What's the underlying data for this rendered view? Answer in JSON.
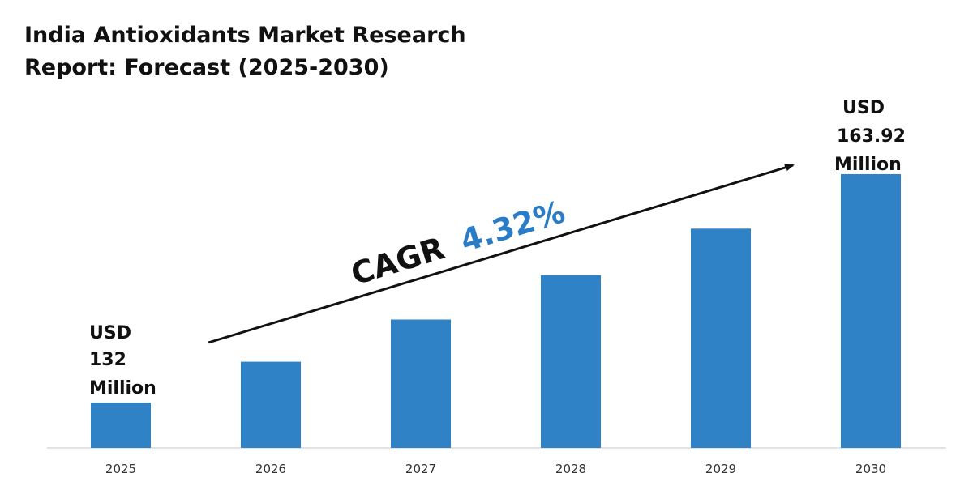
{
  "title": {
    "line1": "India Antioxidants Market Research",
    "line2": "Report: Forecast (2025-2030)"
  },
  "colors": {
    "bar": "#2f82c6",
    "cagr_value": "#2a7cc7",
    "text": "#111111",
    "baseline": "#d9d9d9"
  },
  "cagr": {
    "label": "CAGR",
    "value": "4.32%"
  },
  "start_label": [
    "USD",
    "132",
    "Million"
  ],
  "end_label": [
    "USD",
    "163.92",
    "Million"
  ],
  "chart_data": {
    "type": "bar",
    "title": "India Antioxidants Market Research Report: Forecast (2025-2030)",
    "categories": [
      "2025",
      "2026",
      "2027",
      "2028",
      "2029",
      "2030"
    ],
    "series": [
      {
        "values": [
          132,
          137.7,
          143.6,
          149.8,
          156.3,
          163.92
        ]
      }
    ],
    "annotations": [
      "USD 132 Million",
      "USD 163.92 Million",
      "CAGR 4.32%"
    ],
    "xlabel": "",
    "ylabel": "",
    "grid": false,
    "legend": "none"
  }
}
